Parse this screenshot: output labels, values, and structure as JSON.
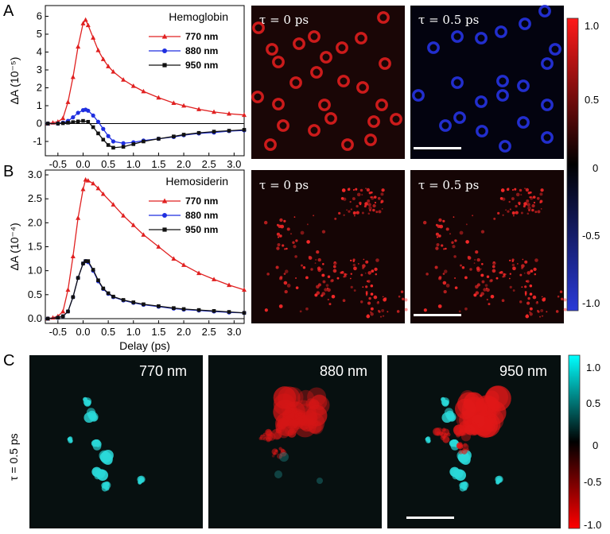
{
  "panel_letters": {
    "a": "A",
    "b": "B",
    "c": "C"
  },
  "colors": {
    "red_series": "#e02020",
    "blue_series": "#1f2fe0",
    "black_series": "#111111",
    "red_cells": "#d81a1a",
    "blue_cells": "#2233cc",
    "cyan": "#2ad5d5",
    "image_bg": "#1a0808",
    "image_bg_c": "#071010"
  },
  "chart_data": [
    {
      "type": "line",
      "title": "Hemoglobin",
      "xlabel": "",
      "ylabel": "ΔA (10⁻⁵)",
      "xlim": [
        -0.75,
        3.2
      ],
      "ylim": [
        -1.8,
        6.6
      ],
      "xticks": [
        "-0.5",
        "0.0",
        "0.5",
        "1.0",
        "1.5",
        "2.0",
        "2.5",
        "3.0"
      ],
      "yticks": [
        "-1",
        "0",
        "1",
        "2",
        "3",
        "4",
        "5",
        "6"
      ],
      "legend_position": "top-right",
      "series": [
        {
          "name": "770 nm",
          "marker": "triangle",
          "x": [
            -0.7,
            -0.6,
            -0.5,
            -0.4,
            -0.3,
            -0.2,
            -0.1,
            0.0,
            0.05,
            0.1,
            0.2,
            0.3,
            0.4,
            0.5,
            0.6,
            0.8,
            1.0,
            1.2,
            1.5,
            1.8,
            2.0,
            2.3,
            2.6,
            2.9,
            3.2
          ],
          "y": [
            0.0,
            0.05,
            0.1,
            0.3,
            1.2,
            2.6,
            4.3,
            5.6,
            5.8,
            5.5,
            4.8,
            4.1,
            3.6,
            3.2,
            2.9,
            2.45,
            2.1,
            1.8,
            1.45,
            1.15,
            1.0,
            0.8,
            0.65,
            0.55,
            0.48
          ]
        },
        {
          "name": "880 nm",
          "marker": "circle",
          "x": [
            -0.7,
            -0.5,
            -0.4,
            -0.3,
            -0.2,
            -0.1,
            0.0,
            0.05,
            0.1,
            0.2,
            0.3,
            0.4,
            0.5,
            0.6,
            0.8,
            1.0,
            1.2,
            1.5,
            1.8,
            2.0,
            2.3,
            2.6,
            2.9,
            3.2
          ],
          "y": [
            0.0,
            0.0,
            0.05,
            0.15,
            0.35,
            0.6,
            0.75,
            0.78,
            0.72,
            0.45,
            0.1,
            -0.3,
            -0.7,
            -1.0,
            -1.1,
            -1.05,
            -0.95,
            -0.85,
            -0.75,
            -0.65,
            -0.55,
            -0.5,
            -0.42,
            -0.38
          ]
        },
        {
          "name": "950 nm",
          "marker": "square",
          "x": [
            -0.7,
            -0.5,
            -0.4,
            -0.3,
            -0.2,
            -0.1,
            0.0,
            0.1,
            0.2,
            0.3,
            0.4,
            0.5,
            0.6,
            0.8,
            1.0,
            1.2,
            1.5,
            1.8,
            2.0,
            2.3,
            2.6,
            2.9,
            3.2
          ],
          "y": [
            0.0,
            0.0,
            0.02,
            0.05,
            0.08,
            0.12,
            0.15,
            0.1,
            -0.2,
            -0.55,
            -0.9,
            -1.2,
            -1.35,
            -1.3,
            -1.15,
            -1.0,
            -0.85,
            -0.72,
            -0.62,
            -0.52,
            -0.45,
            -0.4,
            -0.35
          ]
        }
      ]
    },
    {
      "type": "line",
      "title": "Hemosiderin",
      "xlabel": "Delay (ps)",
      "ylabel": "ΔA (10⁻⁴)",
      "xlim": [
        -0.75,
        3.2
      ],
      "ylim": [
        -0.1,
        3.1
      ],
      "xticks": [
        "-0.5",
        "0.0",
        "0.5",
        "1.0",
        "1.5",
        "2.0",
        "2.5",
        "3.0"
      ],
      "yticks": [
        "0.0",
        "0.5",
        "1.0",
        "1.5",
        "2.0",
        "2.5",
        "3.0"
      ],
      "legend_position": "top-right",
      "series": [
        {
          "name": "770 nm",
          "marker": "triangle",
          "x": [
            -0.7,
            -0.6,
            -0.5,
            -0.4,
            -0.3,
            -0.2,
            -0.1,
            0.0,
            0.05,
            0.1,
            0.2,
            0.3,
            0.4,
            0.6,
            0.8,
            1.0,
            1.2,
            1.5,
            1.8,
            2.0,
            2.3,
            2.6,
            2.9,
            3.2
          ],
          "y": [
            0.0,
            0.02,
            0.05,
            0.15,
            0.6,
            1.3,
            2.1,
            2.7,
            2.9,
            2.88,
            2.82,
            2.72,
            2.6,
            2.38,
            2.15,
            1.95,
            1.75,
            1.5,
            1.25,
            1.12,
            0.95,
            0.82,
            0.7,
            0.6
          ]
        },
        {
          "name": "880 nm",
          "marker": "circle",
          "x": [
            -0.7,
            -0.5,
            -0.4,
            -0.3,
            -0.2,
            -0.1,
            0.0,
            0.05,
            0.1,
            0.2,
            0.3,
            0.4,
            0.5,
            0.6,
            0.8,
            1.0,
            1.2,
            1.5,
            1.8,
            2.0,
            2.3,
            2.6,
            2.9,
            3.2
          ],
          "y": [
            0.0,
            0.02,
            0.05,
            0.15,
            0.45,
            0.85,
            1.15,
            1.2,
            1.18,
            1.0,
            0.78,
            0.62,
            0.52,
            0.45,
            0.38,
            0.33,
            0.29,
            0.25,
            0.21,
            0.19,
            0.17,
            0.15,
            0.13,
            0.12
          ]
        },
        {
          "name": "950 nm",
          "marker": "square",
          "x": [
            -0.7,
            -0.5,
            -0.4,
            -0.3,
            -0.2,
            -0.1,
            0.0,
            0.05,
            0.1,
            0.2,
            0.3,
            0.4,
            0.5,
            0.6,
            0.8,
            1.0,
            1.2,
            1.5,
            1.8,
            2.0,
            2.3,
            2.6,
            2.9,
            3.2
          ],
          "y": [
            0.0,
            0.02,
            0.05,
            0.15,
            0.45,
            0.85,
            1.15,
            1.2,
            1.2,
            1.02,
            0.8,
            0.63,
            0.53,
            0.46,
            0.39,
            0.34,
            0.3,
            0.26,
            0.22,
            0.2,
            0.18,
            0.16,
            0.14,
            0.12
          ]
        }
      ]
    }
  ],
  "images_ab": {
    "a_left_label": "τ = 0 ps",
    "a_right_label": "τ = 0.5 ps",
    "b_left_label": "τ = 0 ps",
    "b_right_label": "τ = 0.5 ps"
  },
  "colorbar_ab": {
    "ticks": [
      "1.0",
      "0.5",
      "0",
      "-0.5",
      "-1.0"
    ]
  },
  "row_c": {
    "side_label": "τ = 0.5 ps",
    "labels": [
      "770 nm",
      "880 nm",
      "950 nm"
    ]
  },
  "colorbar_c": {
    "ticks": [
      "1.0",
      "0.5",
      "0",
      "-0.5",
      "-1.0"
    ]
  }
}
